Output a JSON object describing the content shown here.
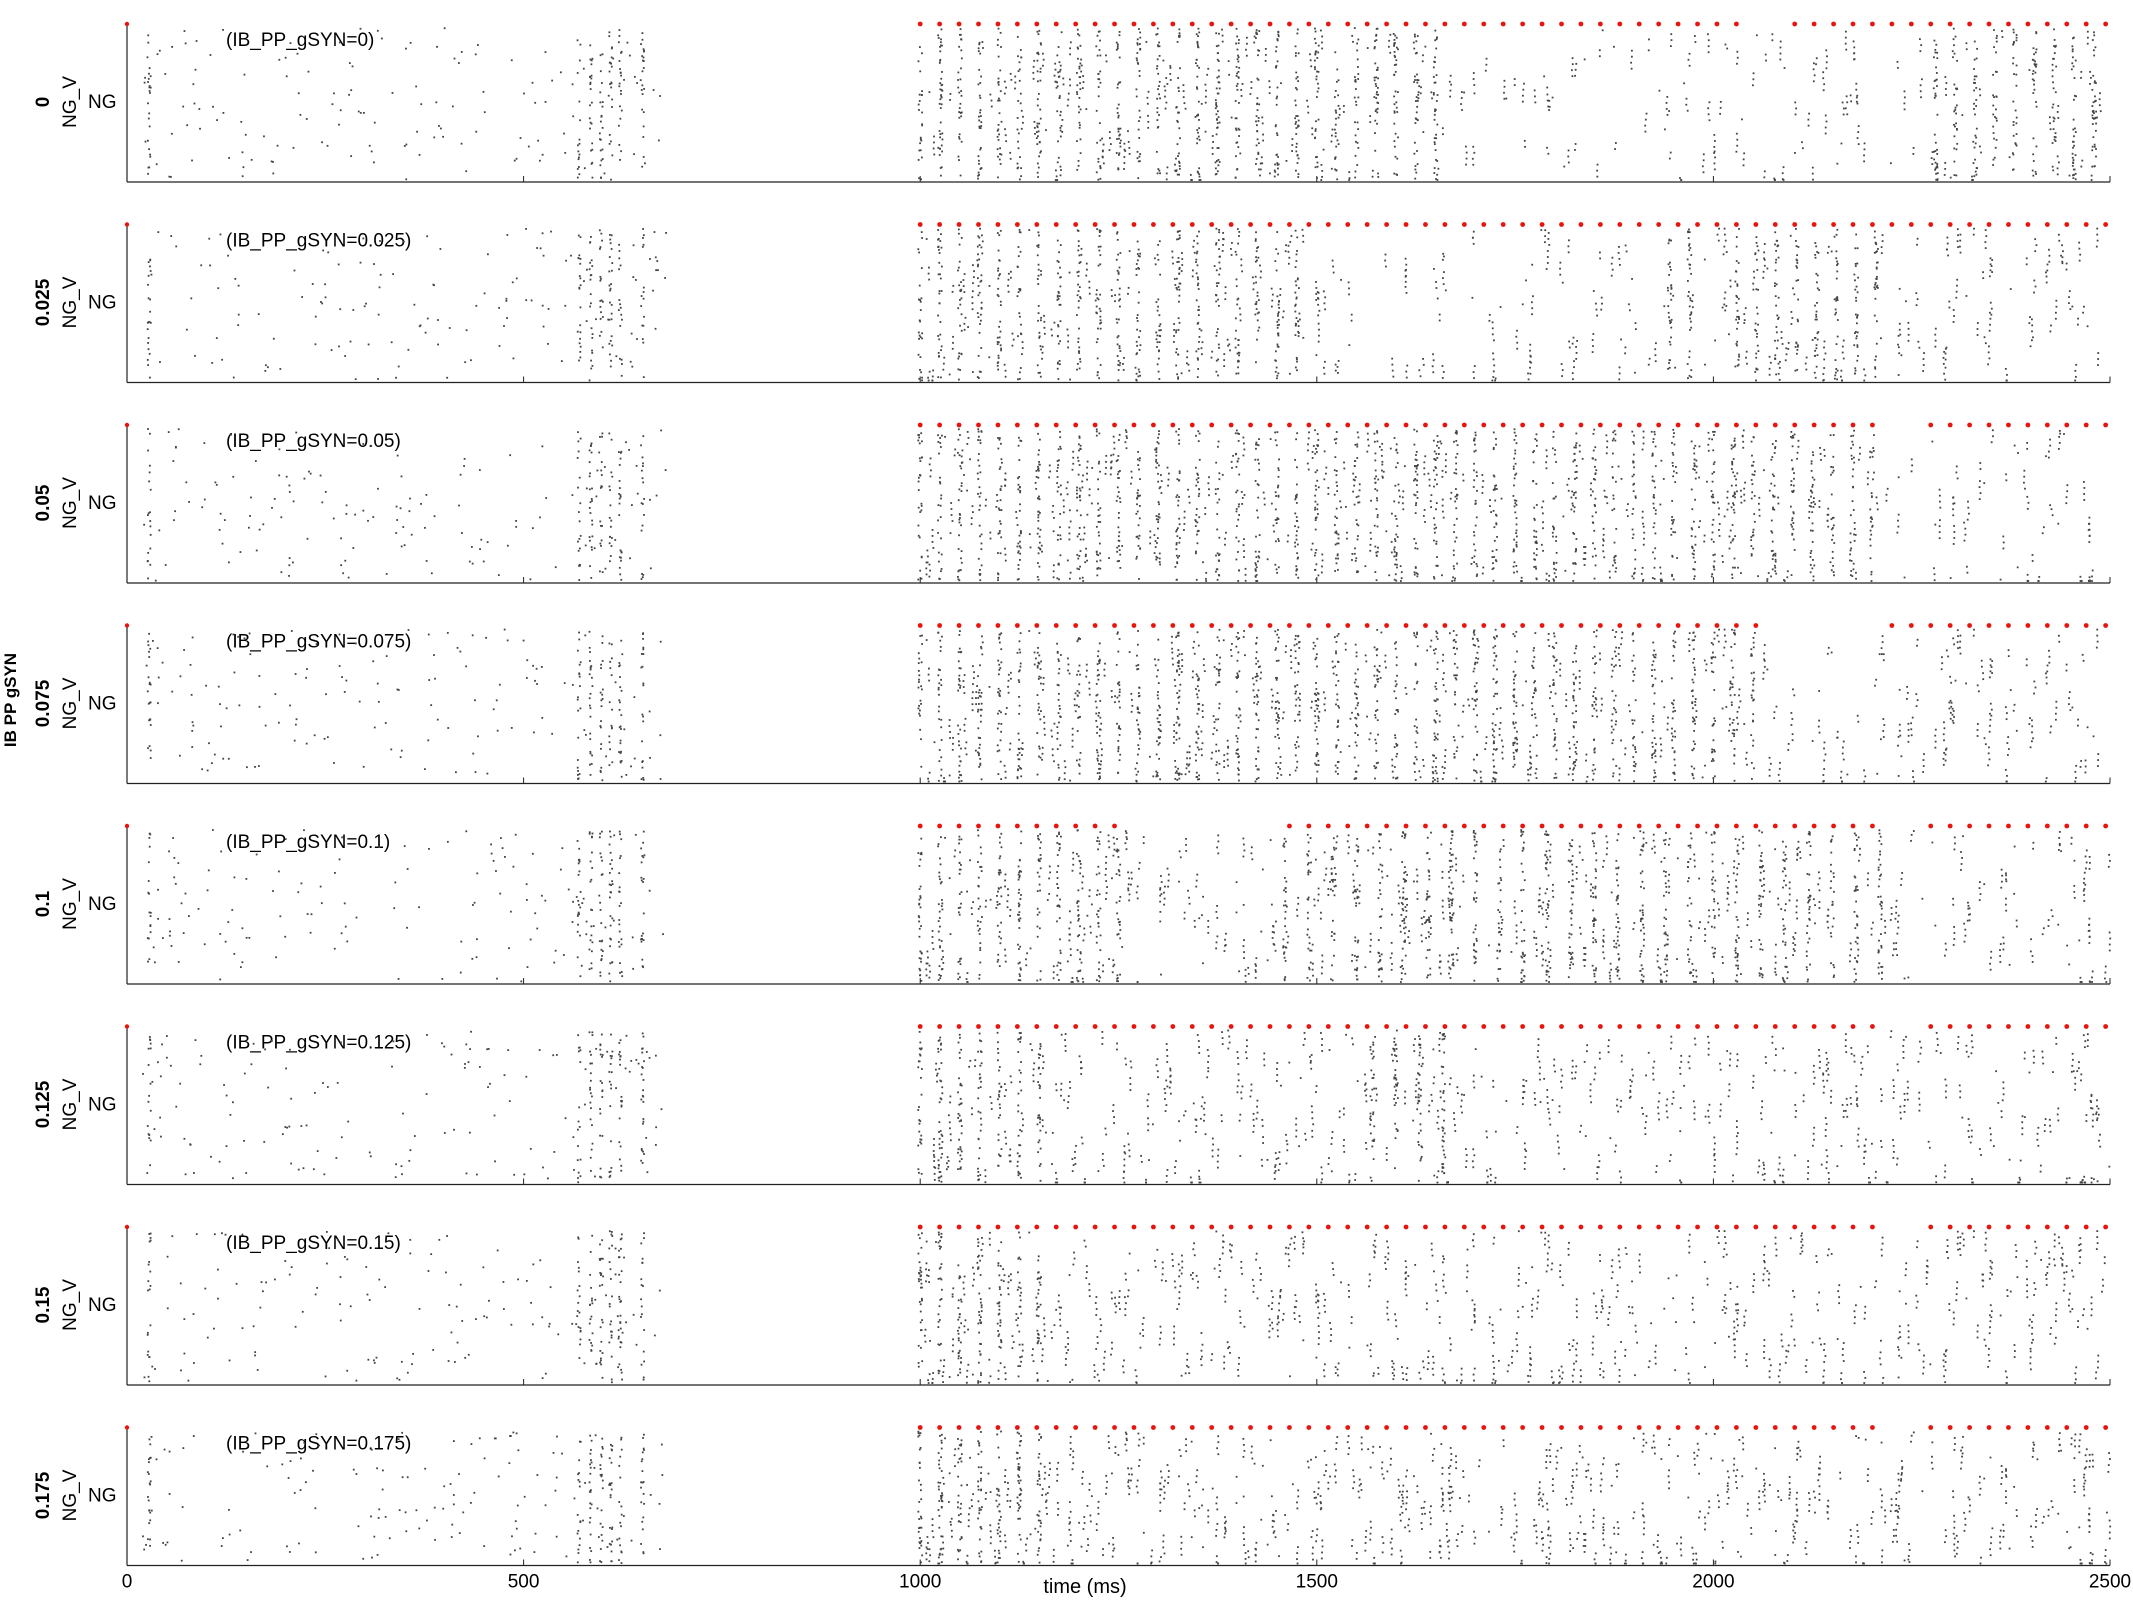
{
  "chart_data": {
    "type": "scatter",
    "kind": "raster plot, 8 vertically stacked panels",
    "xlabel": "time (ms)",
    "xlim": [
      0,
      2500
    ],
    "xticks": [
      "0",
      "500",
      "1000",
      "1500",
      "2000",
      "2500"
    ],
    "xtick_values": [
      0,
      500,
      1000,
      1500,
      2000,
      2500
    ],
    "group_ylabel": "IB PP gSYN",
    "panel_ylabel": "NG_V",
    "panel_ytick": "NG",
    "colors": {
      "spikes": "#444444",
      "red_markers": "#e8140e",
      "axes": "#222222"
    },
    "common_early_bursts_ms": [
      28,
      570,
      585,
      598,
      610,
      622,
      650
    ],
    "panels": [
      {
        "value": "0",
        "annotation": "(IB_PP_gSYN=0)",
        "red_period_ms": 24.5,
        "red_gaps_ms": [
          [
            2040,
            2098
          ]
        ],
        "dense_columns_ms": [
          1000,
          1025,
          1050,
          1075,
          1100,
          1125,
          1150,
          1175,
          1200,
          1225,
          1250,
          1275,
          1300,
          1325,
          1350,
          1375,
          1400,
          1425,
          1450,
          1475,
          1500,
          1525,
          1550,
          1575,
          1600,
          1625,
          1650,
          2280,
          2305,
          2330,
          2355,
          2380,
          2405,
          2430,
          2455,
          2480
        ]
      },
      {
        "value": "0.025",
        "annotation": "(IB_PP_gSYN=0.025)",
        "red_period_ms": 24.5,
        "red_gaps_ms": [],
        "dense_columns_ms": [
          1000,
          1025,
          1050,
          1075,
          1100,
          1125,
          1150,
          1175,
          1200,
          1225,
          1250,
          1275,
          1300,
          1325,
          1350,
          1375,
          1400,
          1425,
          1450,
          1475,
          1945,
          1970,
          2030,
          2055,
          2080,
          2105,
          2130,
          2155,
          2180,
          2205
        ]
      },
      {
        "value": "0.05",
        "annotation": "(IB_PP_gSYN=0.05)",
        "red_period_ms": 24.5,
        "red_gaps_ms": [
          [
            2215,
            2270
          ]
        ],
        "dense_columns_ms": [
          1000,
          1025,
          1050,
          1075,
          1100,
          1125,
          1150,
          1175,
          1200,
          1225,
          1250,
          1275,
          1300,
          1325,
          1350,
          1375,
          1400,
          1425,
          1450,
          1475,
          1500,
          1525,
          1550,
          1575,
          1600,
          1625,
          1650,
          1675,
          1700,
          1725,
          1750,
          1775,
          1800,
          1825,
          1850,
          1875,
          1900,
          1925,
          1950,
          1975,
          2000,
          2025,
          2050,
          2075,
          2100,
          2125,
          2150,
          2175,
          2200
        ]
      },
      {
        "value": "0.075",
        "annotation": "(IB_PP_gSYN=0.075)",
        "red_period_ms": 24.5,
        "red_gaps_ms": [
          [
            2060,
            2210
          ]
        ],
        "dense_columns_ms": [
          1000,
          1025,
          1050,
          1075,
          1100,
          1125,
          1150,
          1175,
          1200,
          1225,
          1250,
          1275,
          1300,
          1325,
          1350,
          1375,
          1400,
          1425,
          1450,
          1475,
          1500,
          1525,
          1550,
          1575,
          1600,
          1625,
          1650,
          1675,
          1700,
          1725,
          1750,
          1775,
          1800,
          1825,
          1850,
          1875,
          1900,
          1925,
          1950,
          1975,
          2000,
          2025,
          2050
        ]
      },
      {
        "value": "0.1",
        "annotation": "(IB_PP_gSYN=0.1)",
        "red_period_ms": 24.5,
        "red_gaps_ms": [
          [
            1260,
            1450
          ],
          [
            2215,
            2270
          ]
        ],
        "dense_columns_ms": [
          1000,
          1025,
          1050,
          1075,
          1100,
          1125,
          1150,
          1175,
          1200,
          1225,
          1250,
          1460,
          1490,
          1520,
          1550,
          1580,
          1610,
          1640,
          1670,
          1700,
          1730,
          1760,
          1790,
          1820,
          1850,
          1880,
          1910,
          1940,
          1970,
          2000,
          2030,
          2060,
          2090,
          2120,
          2150,
          2180,
          2210
        ]
      },
      {
        "value": "0.125",
        "annotation": "(IB_PP_gSYN=0.125)",
        "red_period_ms": 24.5,
        "red_gaps_ms": [
          [
            2215,
            2270
          ]
        ],
        "dense_columns_ms": [
          1000,
          1025,
          1050,
          1075,
          1100,
          1125,
          1150,
          1570,
          1600,
          1630,
          1660
        ]
      },
      {
        "value": "0.15",
        "annotation": "(IB_PP_gSYN=0.15)",
        "red_period_ms": 24.5,
        "red_gaps_ms": [
          [
            2215,
            2270
          ]
        ],
        "dense_columns_ms": [
          1000,
          1025,
          1050,
          1075,
          1100,
          1125,
          1150
        ]
      },
      {
        "value": "0.175",
        "annotation": "(IB_PP_gSYN=0.175)",
        "red_period_ms": 24.5,
        "red_gaps_ms": [
          [
            2215,
            2270
          ]
        ],
        "dense_columns_ms": [
          1000,
          1025,
          1050,
          1075,
          1100,
          1125,
          1150
        ]
      }
    ]
  }
}
